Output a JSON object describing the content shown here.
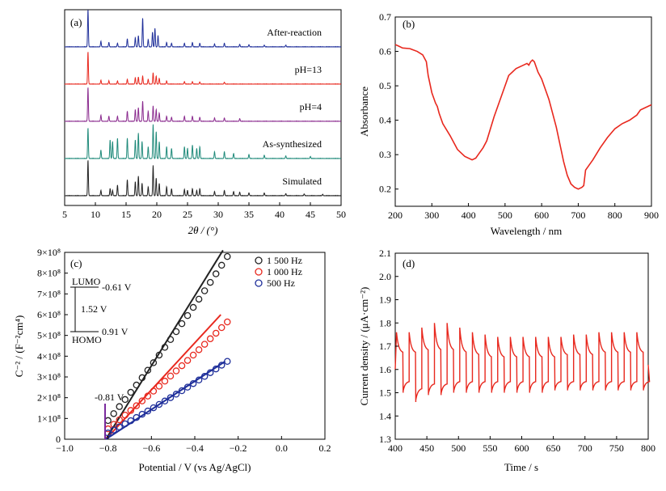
{
  "chart_data": [
    {
      "type": "line",
      "panel": "(a)",
      "xlabel": "2θ / (°)",
      "ylabel": "",
      "xlim": [
        5,
        50
      ],
      "xticks": [
        5,
        10,
        15,
        20,
        25,
        30,
        35,
        40,
        45,
        50
      ],
      "yticks_shown": false,
      "series": [
        {
          "name": "After-reaction",
          "color": "#1f2f9a",
          "peaks": [
            [
              8.8,
              1.0
            ],
            [
              10.9,
              0.15
            ],
            [
              12.2,
              0.12
            ],
            [
              13.6,
              0.1
            ],
            [
              15.2,
              0.22
            ],
            [
              16.5,
              0.25
            ],
            [
              17.0,
              0.3
            ],
            [
              17.7,
              0.78
            ],
            [
              18.6,
              0.2
            ],
            [
              19.3,
              0.4
            ],
            [
              19.7,
              0.5
            ],
            [
              20.2,
              0.3
            ],
            [
              21.6,
              0.12
            ],
            [
              22.4,
              0.1
            ],
            [
              24.5,
              0.1
            ],
            [
              25.8,
              0.12
            ],
            [
              27.0,
              0.1
            ],
            [
              29.4,
              0.08
            ],
            [
              31.0,
              0.1
            ],
            [
              33.5,
              0.07
            ],
            [
              35.0,
              0.06
            ],
            [
              37.5,
              0.05
            ],
            [
              41.0,
              0.05
            ]
          ]
        },
        {
          "name": "pH=13",
          "color": "#e8281e",
          "peaks": [
            [
              8.8,
              1.0
            ],
            [
              10.9,
              0.12
            ],
            [
              12.2,
              0.1
            ],
            [
              13.6,
              0.1
            ],
            [
              15.2,
              0.15
            ],
            [
              16.5,
              0.2
            ],
            [
              17.0,
              0.22
            ],
            [
              17.7,
              0.25
            ],
            [
              18.6,
              0.15
            ],
            [
              19.4,
              0.35
            ],
            [
              19.9,
              0.25
            ],
            [
              20.4,
              0.18
            ],
            [
              21.6,
              0.1
            ],
            [
              24.5,
              0.08
            ],
            [
              25.8,
              0.08
            ],
            [
              27.0,
              0.07
            ],
            [
              31.0,
              0.06
            ]
          ]
        },
        {
          "name": "pH=4",
          "color": "#8a2a8e",
          "peaks": [
            [
              8.8,
              1.0
            ],
            [
              10.9,
              0.18
            ],
            [
              12.2,
              0.15
            ],
            [
              13.6,
              0.15
            ],
            [
              15.2,
              0.3
            ],
            [
              16.5,
              0.35
            ],
            [
              17.0,
              0.4
            ],
            [
              17.7,
              0.6
            ],
            [
              18.6,
              0.3
            ],
            [
              19.4,
              0.45
            ],
            [
              19.9,
              0.35
            ],
            [
              20.4,
              0.25
            ],
            [
              21.6,
              0.15
            ],
            [
              22.4,
              0.12
            ],
            [
              24.5,
              0.15
            ],
            [
              25.8,
              0.15
            ],
            [
              27.0,
              0.12
            ],
            [
              29.4,
              0.1
            ],
            [
              31.0,
              0.1
            ],
            [
              33.5,
              0.08
            ]
          ]
        },
        {
          "name": "As-synthesized",
          "color": "#1f8a7a",
          "peaks": [
            [
              8.8,
              0.9
            ],
            [
              10.9,
              0.25
            ],
            [
              12.4,
              0.55
            ],
            [
              12.8,
              0.5
            ],
            [
              13.6,
              0.6
            ],
            [
              15.2,
              0.6
            ],
            [
              16.5,
              0.55
            ],
            [
              17.0,
              0.75
            ],
            [
              17.6,
              0.5
            ],
            [
              18.6,
              0.35
            ],
            [
              19.4,
              1.0
            ],
            [
              19.9,
              0.8
            ],
            [
              20.4,
              0.5
            ],
            [
              21.6,
              0.35
            ],
            [
              22.4,
              0.3
            ],
            [
              24.5,
              0.35
            ],
            [
              25.0,
              0.3
            ],
            [
              25.8,
              0.4
            ],
            [
              26.5,
              0.3
            ],
            [
              27.0,
              0.35
            ],
            [
              29.4,
              0.2
            ],
            [
              31.0,
              0.2
            ],
            [
              32.5,
              0.15
            ],
            [
              35.0,
              0.12
            ],
            [
              37.5,
              0.1
            ],
            [
              41.0,
              0.08
            ],
            [
              45.0,
              0.06
            ]
          ]
        },
        {
          "name": "Simulated",
          "color": "#222222",
          "peaks": [
            [
              8.8,
              1.0
            ],
            [
              10.9,
              0.15
            ],
            [
              12.4,
              0.2
            ],
            [
              12.8,
              0.15
            ],
            [
              13.6,
              0.3
            ],
            [
              15.2,
              0.45
            ],
            [
              16.5,
              0.4
            ],
            [
              17.0,
              0.55
            ],
            [
              17.6,
              0.35
            ],
            [
              18.6,
              0.25
            ],
            [
              19.4,
              0.85
            ],
            [
              19.9,
              0.5
            ],
            [
              20.4,
              0.35
            ],
            [
              21.6,
              0.25
            ],
            [
              22.4,
              0.2
            ],
            [
              24.5,
              0.18
            ],
            [
              25.0,
              0.15
            ],
            [
              25.8,
              0.2
            ],
            [
              26.5,
              0.15
            ],
            [
              27.0,
              0.2
            ],
            [
              29.4,
              0.12
            ],
            [
              31.0,
              0.15
            ],
            [
              32.5,
              0.12
            ],
            [
              33.5,
              0.1
            ],
            [
              35.0,
              0.08
            ],
            [
              37.5,
              0.08
            ],
            [
              41.0,
              0.06
            ],
            [
              44.0,
              0.05
            ],
            [
              47.0,
              0.04
            ]
          ]
        }
      ]
    },
    {
      "type": "line",
      "panel": "(b)",
      "xlabel": "Wavelength / nm",
      "ylabel": "Absorbance",
      "xlim": [
        200,
        900
      ],
      "ylim": [
        0.15,
        0.7
      ],
      "xticks": [
        200,
        300,
        400,
        500,
        600,
        700,
        800,
        900
      ],
      "yticks": [
        0.2,
        0.3,
        0.4,
        0.5,
        0.6,
        0.7
      ],
      "series": [
        {
          "name": "",
          "color": "#e8281e",
          "x": [
            200,
            210,
            220,
            240,
            260,
            275,
            285,
            290,
            300,
            310,
            315,
            320,
            330,
            350,
            370,
            390,
            410,
            420,
            430,
            440,
            450,
            470,
            490,
            510,
            530,
            550,
            560,
            565,
            570,
            575,
            580,
            590,
            600,
            620,
            640,
            660,
            670,
            680,
            690,
            700,
            710,
            715,
            720,
            730,
            740,
            760,
            780,
            800,
            820,
            840,
            860,
            870,
            880,
            890,
            900
          ],
          "y": [
            0.62,
            0.615,
            0.61,
            0.608,
            0.6,
            0.59,
            0.57,
            0.53,
            0.48,
            0.45,
            0.44,
            0.42,
            0.39,
            0.355,
            0.315,
            0.295,
            0.285,
            0.29,
            0.305,
            0.32,
            0.34,
            0.41,
            0.47,
            0.53,
            0.55,
            0.56,
            0.565,
            0.56,
            0.57,
            0.575,
            0.57,
            0.54,
            0.52,
            0.46,
            0.38,
            0.28,
            0.24,
            0.215,
            0.205,
            0.2,
            0.205,
            0.21,
            0.255,
            0.27,
            0.285,
            0.32,
            0.35,
            0.375,
            0.39,
            0.4,
            0.415,
            0.43,
            0.435,
            0.44,
            0.445
          ]
        }
      ]
    },
    {
      "type": "scatter",
      "panel": "(c)",
      "xlabel": "Potential / V (vs Ag/AgCl)",
      "ylabel": "C⁻² / (F⁻²cm⁴)",
      "xlim": [
        -1.0,
        0.2
      ],
      "ylim": [
        0,
        900000000.0
      ],
      "xticks": [
        -1.0,
        -0.8,
        -0.6,
        -0.4,
        -0.2,
        0.0,
        0.2
      ],
      "xtick_labels": [
        "−1.0",
        "−0.8",
        "−0.6",
        "−0.4",
        "−0.2",
        "0.0",
        "0.2"
      ],
      "yticks": [
        0,
        100000000.0,
        200000000.0,
        300000000.0,
        400000000.0,
        500000000.0,
        600000000.0,
        700000000.0,
        800000000.0,
        900000000.0
      ],
      "ytick_labels": [
        "0",
        "1×10⁸",
        "2×10⁸",
        "3×10⁸",
        "4×10⁸",
        "5×10⁸",
        "6×10⁸",
        "7×10⁸",
        "8×10⁸",
        "9×10⁸"
      ],
      "legend_position": "top-right",
      "series": [
        {
          "name": "1 500 Hz",
          "color": "#222222",
          "x_start": -0.8,
          "x_end": -0.25,
          "y_start": 90000000.0,
          "y_end": 880000000.0,
          "fit": [
            [
              -0.81,
              0
            ],
            [
              -0.27,
              910000000.0
            ]
          ]
        },
        {
          "name": "1 000 Hz",
          "color": "#e8281e",
          "x_start": -0.8,
          "x_end": -0.25,
          "y_start": 50000000.0,
          "y_end": 565000000.0,
          "fit": [
            [
              -0.81,
              0
            ],
            [
              -0.28,
              600000000.0
            ]
          ]
        },
        {
          "name": "500 Hz",
          "color": "#1f2f9a",
          "x_start": -0.8,
          "x_end": -0.25,
          "y_start": 30000000.0,
          "y_end": 375000000.0,
          "fit": [
            [
              -0.81,
              0
            ],
            [
              -0.26,
              375000000.0
            ]
          ]
        }
      ],
      "annotations": {
        "flatband": "-0.81 V",
        "lumo_label": "LUMO",
        "lumo_value": "-0.61 V",
        "gap": "1.52 V",
        "homo_label": "HOMO",
        "homo_value": "0.91 V"
      }
    },
    {
      "type": "line",
      "panel": "(d)",
      "xlabel": "Time / s",
      "ylabel": "Current density / (μA·cm⁻²)",
      "xlim": [
        400,
        800
      ],
      "ylim": [
        1.3,
        2.1
      ],
      "xticks": [
        400,
        450,
        500,
        550,
        600,
        650,
        700,
        750,
        800
      ],
      "yticks": [
        1.3,
        1.4,
        1.5,
        1.6,
        1.7,
        1.8,
        1.9,
        2.0,
        2.1
      ],
      "series": [
        {
          "name": "",
          "color": "#e8281e",
          "cycle_start": 402,
          "period": 20,
          "on_duration": 10,
          "cycles": 20,
          "on_peak": [
            1.76,
            1.76,
            1.78,
            1.8,
            1.8,
            1.78,
            1.76,
            1.75,
            1.74,
            1.74,
            1.74,
            1.74,
            1.74,
            1.74,
            1.75,
            1.75,
            1.76,
            1.76,
            1.76,
            1.76
          ],
          "on_end": [
            1.67,
            1.67,
            1.68,
            1.68,
            1.68,
            1.67,
            1.66,
            1.65,
            1.65,
            1.65,
            1.65,
            1.65,
            1.65,
            1.66,
            1.66,
            1.66,
            1.67,
            1.67,
            1.67,
            1.67
          ],
          "off_min": [
            1.5,
            1.46,
            1.49,
            1.49,
            1.5,
            1.5,
            1.5,
            1.5,
            1.5,
            1.5,
            1.5,
            1.5,
            1.51,
            1.51,
            1.51,
            1.51,
            1.51,
            1.51,
            1.51,
            1.51
          ],
          "off_end": [
            1.55,
            1.52,
            1.54,
            1.54,
            1.55,
            1.55,
            1.55,
            1.55,
            1.55,
            1.55,
            1.55,
            1.55,
            1.55,
            1.55,
            1.55,
            1.55,
            1.55,
            1.55,
            1.55,
            1.55
          ],
          "final_point": [
            800,
            1.62
          ]
        }
      ]
    }
  ]
}
